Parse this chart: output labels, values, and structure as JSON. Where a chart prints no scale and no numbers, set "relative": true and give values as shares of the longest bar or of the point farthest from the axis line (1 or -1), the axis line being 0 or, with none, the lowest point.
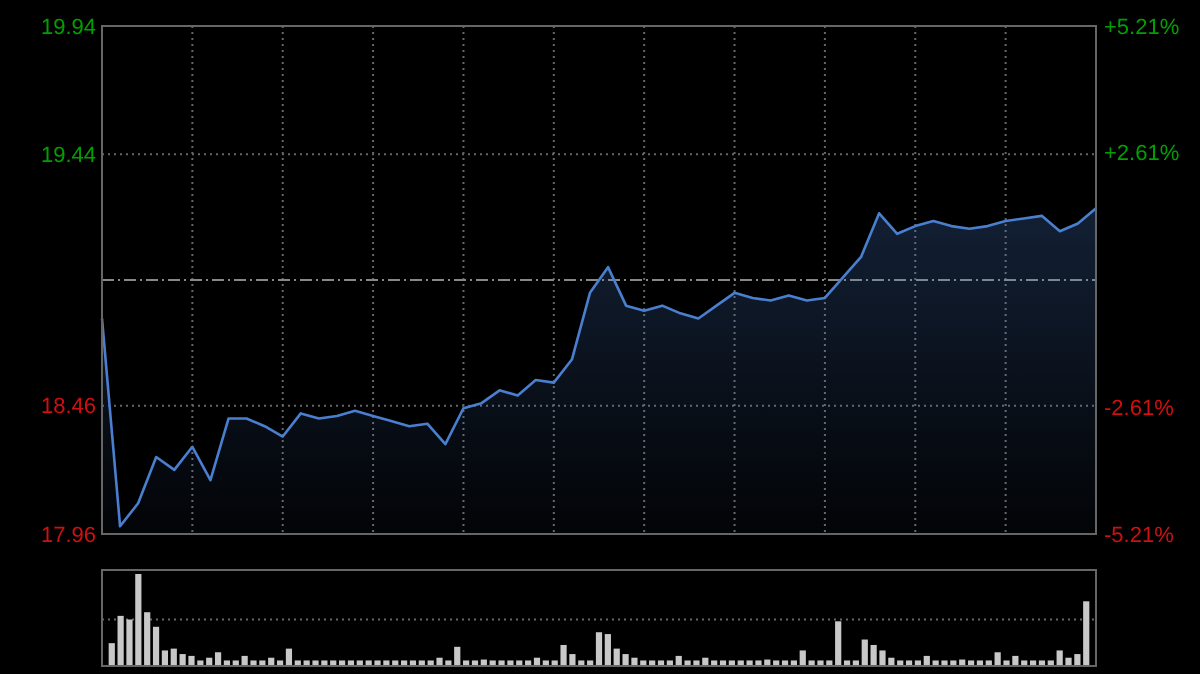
{
  "chart_data": [
    {
      "type": "area",
      "categories": [
        null,
        null,
        null,
        null,
        null,
        null,
        null,
        null,
        null,
        null,
        null,
        null,
        null,
        null,
        null,
        null,
        null,
        null,
        null,
        null,
        null,
        null,
        null,
        null,
        null,
        null,
        null,
        null,
        null,
        null,
        null,
        null,
        null,
        null,
        null,
        null,
        null,
        null,
        null,
        null,
        null,
        null,
        null,
        null,
        null,
        null,
        null,
        null,
        null,
        null,
        null,
        null,
        null,
        null,
        null,
        null
      ],
      "tick_labels": "y",
      "ylim": [
        17.96,
        19.94
      ],
      "yticks": [
        17.96,
        18.46,
        19.44,
        19.94
      ],
      "y2lim": [
        -5.21,
        5.21
      ],
      "y2ticks": [
        {
          "value": -5.21,
          "label": "-5.21%"
        },
        {
          "value": -2.61,
          "label": "-2.61%"
        },
        {
          "value": 2.61,
          "label": "+2.61%"
        },
        {
          "value": 5.21,
          "label": "+5.21%"
        }
      ],
      "grid": true,
      "ref_lines": [
        {
          "axis": "y",
          "value": 18.95,
          "line_style": "dashed"
        }
      ],
      "series": [
        {
          "color": "#4a7fd0",
          "values": [
            18.8,
            17.99,
            18.08,
            18.26,
            18.21,
            18.3,
            18.17,
            18.41,
            18.41,
            18.38,
            18.34,
            18.43,
            18.41,
            18.42,
            18.44,
            18.42,
            18.4,
            18.38,
            18.39,
            18.31,
            18.45,
            18.47,
            18.52,
            18.5,
            18.56,
            18.55,
            18.64,
            18.9,
            19.0,
            18.85,
            18.83,
            18.85,
            18.82,
            18.8,
            18.85,
            18.9,
            18.88,
            18.87,
            18.89,
            18.87,
            18.88,
            18.96,
            19.04,
            19.21,
            19.13,
            19.16,
            19.18,
            19.16,
            19.15,
            19.16,
            19.18,
            19.19,
            19.2,
            19.14,
            19.17,
            19.23
          ]
        }
      ]
    },
    {
      "type": "bar",
      "relative": true,
      "categories": [
        null,
        null,
        null,
        null,
        null,
        null,
        null,
        null,
        null,
        null,
        null,
        null,
        null,
        null,
        null,
        null,
        null,
        null,
        null,
        null,
        null,
        null,
        null,
        null,
        null,
        null,
        null,
        null,
        null,
        null,
        null,
        null,
        null,
        null,
        null,
        null,
        null,
        null,
        null,
        null,
        null,
        null,
        null,
        null,
        null,
        null,
        null,
        null,
        null,
        null,
        null,
        null,
        null,
        null,
        null,
        null,
        null,
        null,
        null,
        null,
        null,
        null,
        null,
        null,
        null,
        null,
        null,
        null,
        null,
        null,
        null,
        null,
        null,
        null,
        null,
        null,
        null,
        null,
        null,
        null,
        null,
        null,
        null,
        null,
        null,
        null,
        null,
        null,
        null,
        null,
        null,
        null,
        null,
        null,
        null,
        null,
        null,
        null,
        null,
        null,
        null,
        null,
        null,
        null,
        null,
        null,
        null,
        null,
        null,
        null,
        null
      ],
      "tick_labels": false,
      "ref_lines": [
        {
          "axis": "y",
          "value": 0.5,
          "line_style": "dotted",
          "color": "#666666"
        }
      ],
      "series": [
        {
          "color": "#c8c8c8",
          "values": [
            0.24,
            0.54,
            0.5,
            1,
            0.58,
            0.42,
            0.16,
            0.18,
            0.12,
            0.1,
            0.05,
            0.08,
            0.14,
            0.05,
            0.05,
            0.1,
            0.05,
            0.05,
            0.08,
            0.05,
            0.18,
            0.05,
            0.05,
            0.05,
            0.05,
            0.05,
            0.05,
            0.05,
            0.05,
            0.05,
            0.05,
            0.05,
            0.05,
            0.05,
            0.05,
            0.05,
            0.05,
            0.08,
            0.05,
            0.2,
            0.05,
            0.05,
            0.06,
            0.05,
            0.05,
            0.05,
            0.05,
            0.05,
            0.08,
            0.05,
            0.05,
            0.22,
            0.12,
            0.05,
            0.05,
            0.36,
            0.34,
            0.18,
            0.12,
            0.08,
            0.05,
            0.05,
            0.05,
            0.05,
            0.1,
            0.05,
            0.05,
            0.08,
            0.05,
            0.05,
            0.05,
            0.05,
            0.05,
            0.05,
            0.06,
            0.05,
            0.05,
            0.05,
            0.16,
            0.05,
            0.05,
            0.05,
            0.48,
            0.05,
            0.05,
            0.28,
            0.22,
            0.16,
            0.08,
            0.05,
            0.05,
            0.05,
            0.1,
            0.05,
            0.05,
            0.05,
            0.06,
            0.05,
            0.05,
            0.05,
            0.14,
            0.05,
            0.1,
            0.05,
            0.05,
            0.05,
            0.05,
            0.16,
            0.08,
            0.12,
            0.7
          ]
        }
      ]
    }
  ]
}
